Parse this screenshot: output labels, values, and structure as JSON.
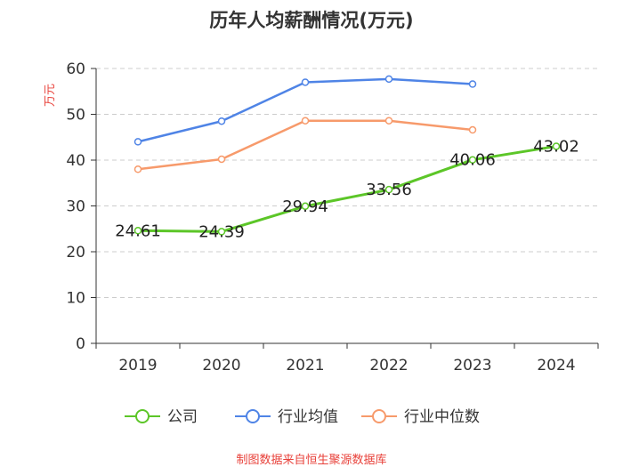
{
  "chart_data": {
    "type": "line",
    "title": "历年人均薪酬情况(万元)",
    "ylabel": "万元",
    "xlabel": "",
    "ylim": [
      0,
      60
    ],
    "yticks": [
      0,
      10,
      20,
      30,
      40,
      50,
      60
    ],
    "categories": [
      "2019",
      "2020",
      "2021",
      "2022",
      "2023",
      "2024"
    ],
    "grid": "horizontal dashed",
    "legend_position": "bottom",
    "series": [
      {
        "name": "公司",
        "color": "#5cc628",
        "values": [
          24.61,
          24.39,
          29.94,
          33.56,
          40.06,
          43.02
        ],
        "labels": [
          "24.61",
          "24.39",
          "29.94",
          "33.56",
          "40.06",
          "43.02"
        ]
      },
      {
        "name": "行业均值",
        "color": "#4f84e6",
        "values": [
          44.0,
          48.5,
          57.0,
          57.7,
          56.6,
          null
        ]
      },
      {
        "name": "行业中位数",
        "color": "#f79a6b",
        "values": [
          38.0,
          40.2,
          48.6,
          48.6,
          46.6,
          null
        ]
      }
    ],
    "source": "制图数据来自恒生聚源数据库"
  }
}
